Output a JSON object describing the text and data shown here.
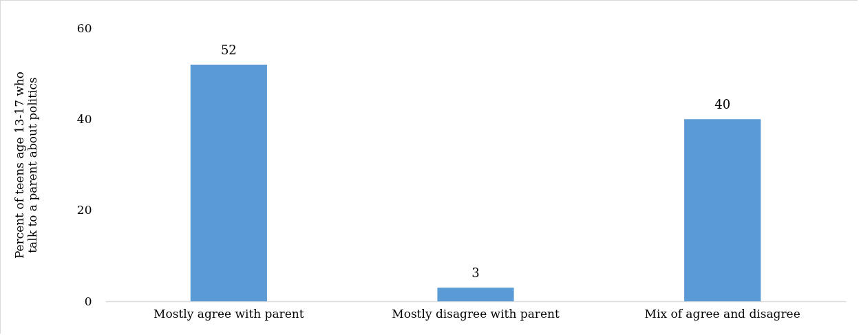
{
  "chart_data": {
    "type": "bar",
    "ylabel": "Percent of teens age 13-17 who talk to a parent about politics",
    "categories": [
      "Mostly agree with parent",
      "Mostly disagree with parent",
      "Mix of agree and disagree"
    ],
    "values": [
      52,
      3,
      40
    ],
    "color": "#5b9bd5",
    "ylim": [
      0,
      60
    ],
    "yticks": [
      0,
      20,
      40,
      60
    ],
    "grid": false,
    "data_labels": true
  }
}
